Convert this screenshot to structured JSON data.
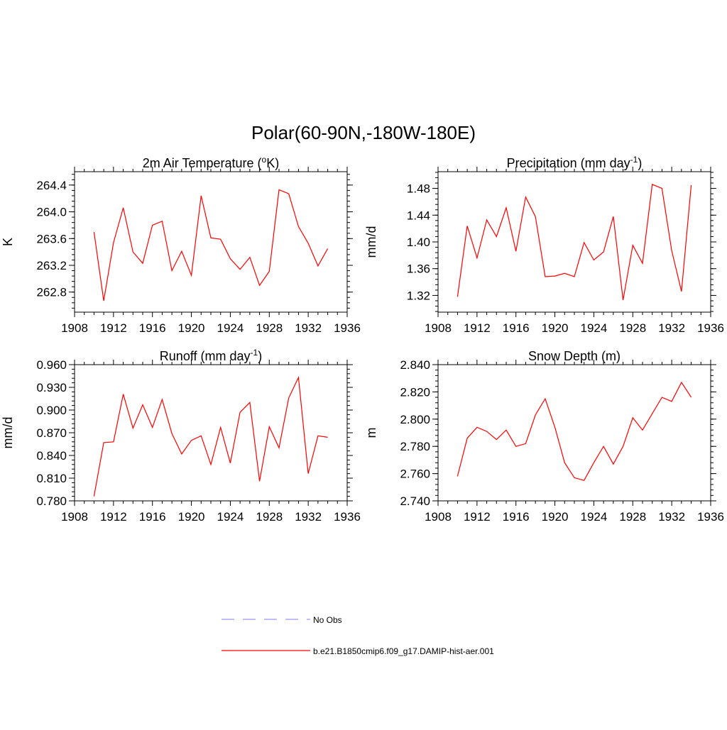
{
  "figure": {
    "title": "Polar(60-90N,-180W-180E)",
    "line_color": "#ff0000",
    "obs_color": "#9999ff"
  },
  "legend": {
    "items": [
      {
        "label": "No Obs",
        "style": "dashed",
        "color": "#9999ff"
      },
      {
        "label": "b.e21.B1850cmip6.f09_g17.DAMIP-hist-aer.001",
        "style": "solid",
        "color": "#ff0000"
      }
    ]
  },
  "chart_data": [
    {
      "type": "line",
      "title": "2m Air Temperature (",
      "title_sup": "o",
      "title_tail": "K)",
      "ylabel": "K",
      "xlim": [
        1908,
        1936
      ],
      "ylim": [
        262.5,
        264.6
      ],
      "x_ticks": [
        1908,
        1912,
        1916,
        1920,
        1924,
        1928,
        1932,
        1936
      ],
      "x_tick_labels": [
        "1908",
        "1912",
        "1916",
        "1920",
        "1924",
        "1928",
        "1932",
        "1936"
      ],
      "y_ticks": [
        262.8,
        263.2,
        263.6,
        264.0,
        264.4
      ],
      "y_tick_labels": [
        "262.8",
        "263.2",
        "263.6",
        "264.0",
        "264.4"
      ],
      "x": [
        1910,
        1911,
        1912,
        1913,
        1914,
        1915,
        1916,
        1917,
        1918,
        1919,
        1920,
        1921,
        1922,
        1923,
        1924,
        1925,
        1926,
        1927,
        1928,
        1929,
        1930,
        1931,
        1932,
        1933,
        1934
      ],
      "series": [
        {
          "values": [
            263.7,
            262.67,
            263.54,
            264.06,
            263.4,
            263.23,
            263.8,
            263.86,
            263.12,
            263.41,
            263.05,
            264.24,
            263.61,
            263.59,
            263.3,
            263.14,
            263.32,
            262.9,
            263.11,
            264.33,
            264.27,
            263.78,
            263.53,
            263.19,
            263.45
          ]
        }
      ]
    },
    {
      "type": "line",
      "title": "Precipitation (mm day",
      "title_sup": "-1",
      "title_tail": ")",
      "ylabel": "mm/d",
      "xlim": [
        1908,
        1936
      ],
      "ylim": [
        1.295,
        1.505
      ],
      "x_ticks": [
        1908,
        1912,
        1916,
        1920,
        1924,
        1928,
        1932,
        1936
      ],
      "x_tick_labels": [
        "1908",
        "1912",
        "1916",
        "1920",
        "1924",
        "1928",
        "1932",
        "1936"
      ],
      "y_ticks": [
        1.32,
        1.36,
        1.4,
        1.44,
        1.48
      ],
      "y_tick_labels": [
        "1.32",
        "1.36",
        "1.40",
        "1.44",
        "1.48"
      ],
      "x": [
        1910,
        1911,
        1912,
        1913,
        1914,
        1915,
        1916,
        1917,
        1918,
        1919,
        1920,
        1921,
        1922,
        1923,
        1924,
        1925,
        1926,
        1927,
        1928,
        1929,
        1930,
        1931,
        1932,
        1933,
        1934
      ],
      "series": [
        {
          "values": [
            1.318,
            1.424,
            1.376,
            1.433,
            1.408,
            1.451,
            1.386,
            1.467,
            1.438,
            1.348,
            1.349,
            1.353,
            1.348,
            1.399,
            1.373,
            1.385,
            1.438,
            1.313,
            1.395,
            1.368,
            1.486,
            1.48,
            1.387,
            1.326,
            1.485
          ]
        }
      ]
    },
    {
      "type": "line",
      "title": "Runoff (mm day",
      "title_sup": "-1",
      "title_tail": ")",
      "ylabel": "mm/d",
      "xlim": [
        1908,
        1936
      ],
      "ylim": [
        0.78,
        0.96
      ],
      "x_ticks": [
        1908,
        1912,
        1916,
        1920,
        1924,
        1928,
        1932,
        1936
      ],
      "x_tick_labels": [
        "1908",
        "1912",
        "1916",
        "1920",
        "1924",
        "1928",
        "1932",
        "1936"
      ],
      "y_ticks": [
        0.78,
        0.81,
        0.84,
        0.87,
        0.9,
        0.93,
        0.96
      ],
      "y_tick_labels": [
        "0.780",
        "0.810",
        "0.840",
        "0.870",
        "0.900",
        "0.930",
        "0.960"
      ],
      "x": [
        1910,
        1911,
        1912,
        1913,
        1914,
        1915,
        1916,
        1917,
        1918,
        1919,
        1920,
        1921,
        1922,
        1923,
        1924,
        1925,
        1926,
        1927,
        1928,
        1929,
        1930,
        1931,
        1932,
        1933,
        1934
      ],
      "series": [
        {
          "values": [
            0.786,
            0.857,
            0.858,
            0.921,
            0.876,
            0.907,
            0.877,
            0.914,
            0.869,
            0.842,
            0.86,
            0.866,
            0.828,
            0.877,
            0.83,
            0.897,
            0.91,
            0.806,
            0.878,
            0.85,
            0.916,
            0.943,
            0.816,
            0.866,
            0.864
          ]
        }
      ]
    },
    {
      "type": "line",
      "title": "Snow Depth (m)",
      "title_sup": "",
      "title_tail": "",
      "ylabel": "m",
      "xlim": [
        1908,
        1936
      ],
      "ylim": [
        2.74,
        2.84
      ],
      "x_ticks": [
        1908,
        1912,
        1916,
        1920,
        1924,
        1928,
        1932,
        1936
      ],
      "x_tick_labels": [
        "1908",
        "1912",
        "1916",
        "1920",
        "1924",
        "1928",
        "1932",
        "1936"
      ],
      "y_ticks": [
        2.74,
        2.76,
        2.78,
        2.8,
        2.82,
        2.84
      ],
      "y_tick_labels": [
        "2.740",
        "2.760",
        "2.780",
        "2.800",
        "2.820",
        "2.840"
      ],
      "x": [
        1910,
        1911,
        1912,
        1913,
        1914,
        1915,
        1916,
        1917,
        1918,
        1919,
        1920,
        1921,
        1922,
        1923,
        1924,
        1925,
        1926,
        1927,
        1928,
        1929,
        1930,
        1931,
        1932,
        1933,
        1934
      ],
      "series": [
        {
          "values": [
            2.758,
            2.786,
            2.794,
            2.791,
            2.785,
            2.792,
            2.78,
            2.782,
            2.803,
            2.815,
            2.794,
            2.768,
            2.757,
            2.755,
            2.768,
            2.78,
            2.767,
            2.78,
            2.801,
            2.792,
            2.804,
            2.816,
            2.813,
            2.827,
            2.816
          ]
        }
      ]
    }
  ]
}
